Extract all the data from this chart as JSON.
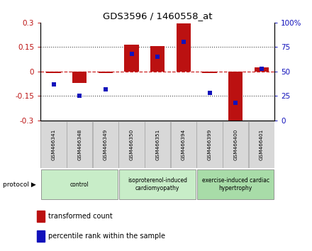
{
  "title": "GDS3596 / 1460558_at",
  "samples": [
    "GSM466341",
    "GSM466348",
    "GSM466349",
    "GSM466350",
    "GSM466351",
    "GSM466394",
    "GSM466399",
    "GSM466400",
    "GSM466401"
  ],
  "transformed_count": [
    -0.01,
    -0.07,
    -0.01,
    0.165,
    0.155,
    0.295,
    -0.01,
    -0.305,
    0.025
  ],
  "percentile_rank": [
    37,
    25,
    32,
    68,
    65,
    80,
    28,
    18,
    53
  ],
  "groups": [
    {
      "label": "control",
      "start": 0,
      "end": 3,
      "color": "#c8edc8"
    },
    {
      "label": "isoproterenol-induced\ncardiomyopathy",
      "start": 3,
      "end": 6,
      "color": "#c8edc8"
    },
    {
      "label": "exercise-induced cardiac\nhypertrophy",
      "start": 6,
      "end": 9,
      "color": "#a8dca8"
    }
  ],
  "ylim_left": [
    -0.3,
    0.3
  ],
  "ylim_right": [
    0,
    100
  ],
  "yticks_left": [
    -0.3,
    -0.15,
    0,
    0.15,
    0.3
  ],
  "yticks_right": [
    0,
    25,
    50,
    75,
    100
  ],
  "bar_color": "#bb1111",
  "dot_color": "#1111bb",
  "zero_line_color": "#cc2222",
  "dotted_line_color": "#444444",
  "background_color": "#ffffff",
  "legend_bar_label": "transformed count",
  "legend_dot_label": "percentile rank within the sample",
  "sample_box_color": "#d8d8d8",
  "sample_box_edge": "#aaaaaa",
  "protocol_text": "protocol ▶"
}
